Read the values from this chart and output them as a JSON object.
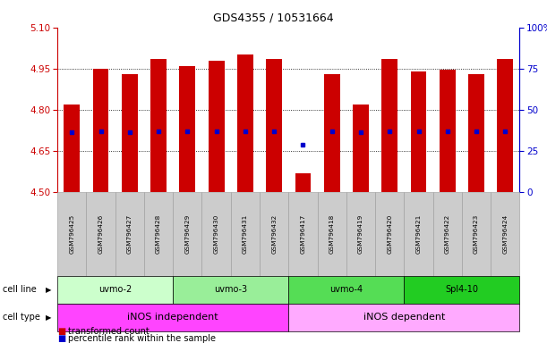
{
  "title": "GDS4355 / 10531664",
  "samples": [
    "GSM796425",
    "GSM796426",
    "GSM796427",
    "GSM796428",
    "GSM796429",
    "GSM796430",
    "GSM796431",
    "GSM796432",
    "GSM796417",
    "GSM796418",
    "GSM796419",
    "GSM796420",
    "GSM796421",
    "GSM796422",
    "GSM796423",
    "GSM796424"
  ],
  "bar_heights": [
    4.82,
    4.95,
    4.93,
    4.985,
    4.96,
    4.98,
    5.0,
    4.985,
    4.57,
    4.93,
    4.82,
    4.985,
    4.94,
    4.945,
    4.93,
    4.985
  ],
  "blue_markers": [
    4.718,
    4.722,
    4.718,
    4.722,
    4.722,
    4.722,
    4.722,
    4.722,
    4.672,
    4.722,
    4.718,
    4.722,
    4.722,
    4.722,
    4.722,
    4.722
  ],
  "bar_bottom": 4.5,
  "ylim": [
    4.5,
    5.1
  ],
  "yticks_left": [
    4.5,
    4.65,
    4.8,
    4.95,
    5.1
  ],
  "yticks_right": [
    0,
    25,
    50,
    75,
    100
  ],
  "bar_color": "#cc0000",
  "blue_color": "#0000cc",
  "cell_line_groups": [
    {
      "label": "uvmo-2",
      "start": 0,
      "end": 3,
      "color": "#ccffcc"
    },
    {
      "label": "uvmo-3",
      "start": 4,
      "end": 7,
      "color": "#99ee99"
    },
    {
      "label": "uvmo-4",
      "start": 8,
      "end": 11,
      "color": "#55dd55"
    },
    {
      "label": "Spl4-10",
      "start": 12,
      "end": 15,
      "color": "#22cc22"
    }
  ],
  "cell_type_groups": [
    {
      "label": "iNOS independent",
      "start": 0,
      "end": 7,
      "color": "#ff44ff"
    },
    {
      "label": "iNOS dependent",
      "start": 8,
      "end": 15,
      "color": "#ffaaff"
    }
  ],
  "legend_items": [
    {
      "color": "#cc0000",
      "label": "transformed count"
    },
    {
      "color": "#0000cc",
      "label": "percentile rank within the sample"
    }
  ],
  "left_axis_color": "#cc0000",
  "right_axis_color": "#0000cc",
  "sample_box_color": "#cccccc",
  "sample_box_edge": "#999999"
}
